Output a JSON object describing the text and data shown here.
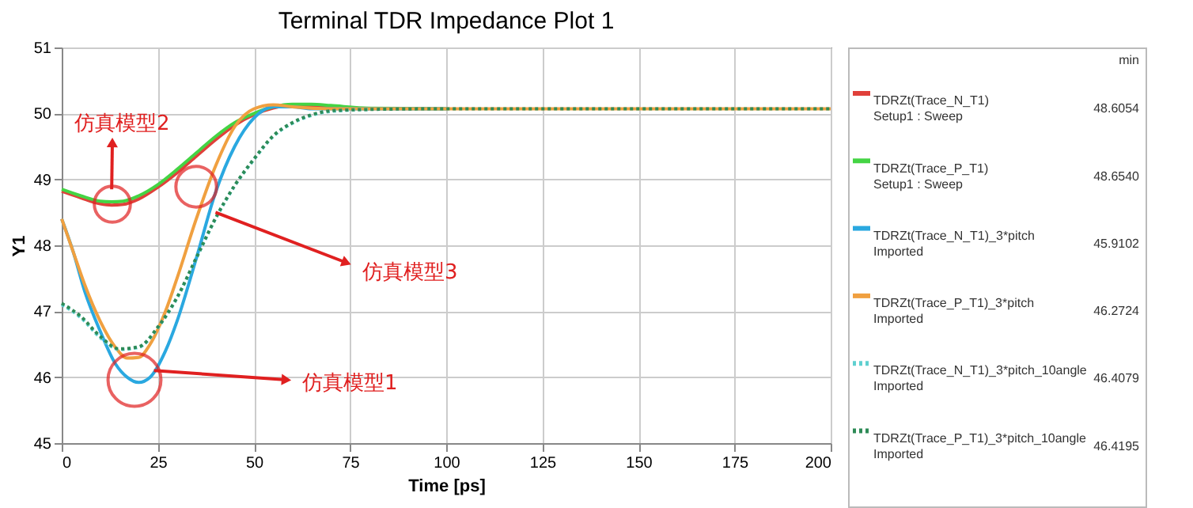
{
  "chart_data": {
    "type": "line",
    "title": "Terminal TDR Impedance Plot 1",
    "xlabel": "Time [ps]",
    "ylabel": "Y1",
    "xlim": [
      0,
      200
    ],
    "xticks": [
      0,
      25,
      50,
      75,
      100,
      125,
      150,
      175,
      200
    ],
    "ylim": [
      45,
      51
    ],
    "yticks": [
      45,
      46,
      47,
      48,
      49,
      50,
      51
    ],
    "grid": true,
    "legend": "right",
    "legend_title": "min",
    "series": [
      {
        "name": "TDRZt(Trace_N_T1)\nSetup1 : Sweep",
        "color": "#e0403a",
        "line_style": "solid",
        "x": [
          0,
          5,
          10,
          13,
          16,
          20,
          25,
          30,
          35,
          40,
          45,
          50,
          55,
          60,
          65,
          70,
          80
        ],
        "values": [
          48.82,
          48.72,
          48.63,
          48.61,
          48.62,
          48.7,
          48.88,
          49.1,
          49.35,
          49.6,
          49.82,
          49.98,
          50.08,
          50.12,
          50.12,
          50.1,
          50.07
        ]
      },
      {
        "name": "TDRZt(Trace_P_T1)\nSetup1 : Sweep",
        "color": "#44d444",
        "line_style": "solid",
        "x": [
          0,
          5,
          10,
          13,
          16,
          20,
          25,
          30,
          35,
          40,
          45,
          50,
          55,
          60,
          65,
          70,
          80,
          100
        ],
        "values": [
          48.85,
          48.75,
          48.67,
          48.66,
          48.67,
          48.75,
          48.92,
          49.15,
          49.4,
          49.65,
          49.86,
          50.0,
          50.1,
          50.14,
          50.14,
          50.12,
          50.08,
          50.07
        ]
      },
      {
        "name": "TDRZt(Trace_N_T1)_3*pitch\nImported",
        "color": "#2aa8e0",
        "line_style": "solid",
        "x": [
          0,
          3,
          6,
          10,
          14,
          17,
          20,
          23,
          27,
          30,
          35,
          40,
          45,
          50,
          55,
          60,
          65,
          80,
          100
        ],
        "values": [
          48.4,
          47.9,
          47.3,
          46.7,
          46.2,
          46.0,
          45.92,
          46.0,
          46.4,
          46.85,
          47.8,
          48.8,
          49.5,
          49.93,
          50.1,
          50.1,
          50.07,
          50.07,
          50.07
        ]
      },
      {
        "name": "TDRZt(Trace_P_T1)_3*pitch\nImported",
        "color": "#f0a040",
        "line_style": "solid",
        "x": [
          0,
          3,
          6,
          10,
          14,
          17,
          20,
          23,
          27,
          30,
          35,
          40,
          45,
          50,
          55,
          60,
          70,
          100,
          150,
          200
        ],
        "values": [
          48.4,
          47.9,
          47.4,
          46.85,
          46.45,
          46.29,
          46.3,
          46.5,
          47.0,
          47.5,
          48.4,
          49.2,
          49.8,
          50.07,
          50.13,
          50.1,
          50.07,
          50.07,
          50.07,
          50.07
        ]
      },
      {
        "name": "TDRZt(Trace_N_T1)_3*pitch_10angle\nImported",
        "color": "#5fd0d0",
        "line_style": "dotted",
        "x": [
          0,
          5,
          10,
          15,
          20,
          25,
          30,
          35,
          40,
          45,
          50,
          55,
          60,
          65,
          70,
          80
        ],
        "values": [
          47.1,
          46.9,
          46.6,
          46.42,
          46.45,
          46.75,
          47.2,
          47.8,
          48.4,
          48.9,
          49.3,
          49.65,
          49.85,
          49.97,
          50.03,
          50.06
        ]
      },
      {
        "name": "TDRZt(Trace_P_T1)_3*pitch_10angle\nImported",
        "color": "#2e8b57",
        "line_style": "dotted",
        "x": [
          0,
          5,
          10,
          15,
          20,
          25,
          30,
          35,
          40,
          45,
          50,
          55,
          60,
          65,
          70,
          80,
          100,
          150,
          200
        ],
        "values": [
          47.12,
          46.92,
          46.62,
          46.43,
          46.46,
          46.76,
          47.21,
          47.81,
          48.41,
          48.91,
          49.31,
          49.66,
          49.86,
          49.98,
          50.04,
          50.06,
          50.07,
          50.07,
          50.07
        ]
      }
    ],
    "annotations": [
      {
        "text": "仿真模型2",
        "x": 13,
        "y": 48.85
      },
      {
        "text": "仿真模型3",
        "x": 40,
        "y": 48.5
      },
      {
        "text": "仿真模型1",
        "x": 24,
        "y": 46.1
      },
      "48.6054",
      "48.6540",
      "45.9102",
      "46.2724",
      "46.4079",
      "46.4195"
    ]
  }
}
